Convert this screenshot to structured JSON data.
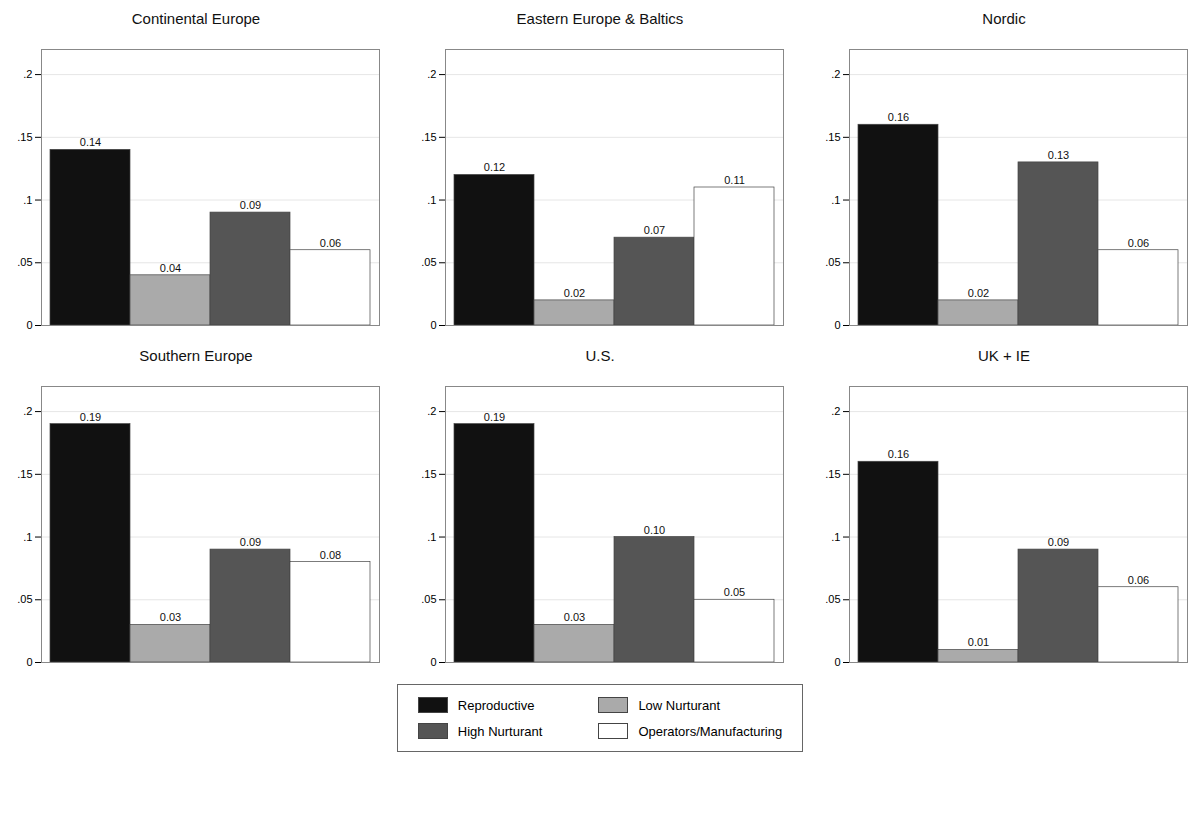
{
  "chart_data": [
    {
      "type": "bar",
      "title": "Continental Europe",
      "categories": [
        "Reproductive",
        "Low Nurturant",
        "High Nurturant",
        "Operators/Manufacturing"
      ],
      "values": [
        0.14,
        0.04,
        0.09,
        0.06
      ],
      "value_labels": [
        "0.14",
        "0.04",
        "0.09",
        "0.06"
      ],
      "colors": [
        "#111111",
        "#aaaaaa",
        "#555555",
        "#ffffff"
      ],
      "ylim": [
        0,
        0.22
      ],
      "yticks": [
        0,
        {
          "value": 0.05,
          "label": ".05"
        },
        {
          "value": 0.1,
          "label": ".1"
        },
        {
          "value": 0.15,
          "label": ".15"
        },
        {
          "value": 0.2,
          "label": ".2"
        }
      ],
      "grid": true,
      "data_labels": true,
      "tick_labels": "y",
      "legend": "bottom"
    },
    {
      "type": "bar",
      "title": "Eastern Europe & Baltics",
      "categories": [
        "Reproductive",
        "Low Nurturant",
        "High Nurturant",
        "Operators/Manufacturing"
      ],
      "values": [
        0.12,
        0.02,
        0.07,
        0.11
      ],
      "value_labels": [
        "0.12",
        "0.02",
        "0.07",
        "0.11"
      ],
      "colors": [
        "#111111",
        "#aaaaaa",
        "#555555",
        "#ffffff"
      ],
      "ylim": [
        0,
        0.22
      ],
      "yticks": [
        0,
        {
          "value": 0.05,
          "label": ".05"
        },
        {
          "value": 0.1,
          "label": ".1"
        },
        {
          "value": 0.15,
          "label": ".15"
        },
        {
          "value": 0.2,
          "label": ".2"
        }
      ],
      "grid": true,
      "data_labels": true,
      "tick_labels": "y",
      "legend": "bottom"
    },
    {
      "type": "bar",
      "title": "Nordic",
      "categories": [
        "Reproductive",
        "Low Nurturant",
        "High Nurturant",
        "Operators/Manufacturing"
      ],
      "values": [
        0.16,
        0.02,
        0.13,
        0.06
      ],
      "value_labels": [
        "0.16",
        "0.02",
        "0.13",
        "0.06"
      ],
      "colors": [
        "#111111",
        "#aaaaaa",
        "#555555",
        "#ffffff"
      ],
      "ylim": [
        0,
        0.22
      ],
      "yticks": [
        0,
        {
          "value": 0.05,
          "label": ".05"
        },
        {
          "value": 0.1,
          "label": ".1"
        },
        {
          "value": 0.15,
          "label": ".15"
        },
        {
          "value": 0.2,
          "label": ".2"
        }
      ],
      "grid": true,
      "data_labels": true,
      "tick_labels": "y",
      "legend": "bottom"
    },
    {
      "type": "bar",
      "title": "Southern Europe",
      "categories": [
        "Reproductive",
        "Low Nurturant",
        "High Nurturant",
        "Operators/Manufacturing"
      ],
      "values": [
        0.19,
        0.03,
        0.09,
        0.08
      ],
      "value_labels": [
        "0.19",
        "0.03",
        "0.09",
        "0.08"
      ],
      "colors": [
        "#111111",
        "#aaaaaa",
        "#555555",
        "#ffffff"
      ],
      "ylim": [
        0,
        0.22
      ],
      "yticks": [
        0,
        {
          "value": 0.05,
          "label": ".05"
        },
        {
          "value": 0.1,
          "label": ".1"
        },
        {
          "value": 0.15,
          "label": ".15"
        },
        {
          "value": 0.2,
          "label": ".2"
        }
      ],
      "grid": true,
      "data_labels": true,
      "tick_labels": "y",
      "legend": "bottom"
    },
    {
      "type": "bar",
      "title": "U.S.",
      "categories": [
        "Reproductive",
        "Low Nurturant",
        "High Nurturant",
        "Operators/Manufacturing"
      ],
      "values": [
        0.19,
        0.03,
        0.1,
        0.05
      ],
      "value_labels": [
        "0.19",
        "0.03",
        "0.10",
        "0.05"
      ],
      "colors": [
        "#111111",
        "#aaaaaa",
        "#555555",
        "#ffffff"
      ],
      "ylim": [
        0,
        0.22
      ],
      "yticks": [
        0,
        {
          "value": 0.05,
          "label": ".05"
        },
        {
          "value": 0.1,
          "label": ".1"
        },
        {
          "value": 0.15,
          "label": ".15"
        },
        {
          "value": 0.2,
          "label": ".2"
        }
      ],
      "grid": true,
      "data_labels": true,
      "tick_labels": "y",
      "legend": "bottom"
    },
    {
      "type": "bar",
      "title": "UK + IE",
      "categories": [
        "Reproductive",
        "Low Nurturant",
        "High Nurturant",
        "Operators/Manufacturing"
      ],
      "values": [
        0.16,
        0.01,
        0.09,
        0.06
      ],
      "value_labels": [
        "0.16",
        "0.01",
        "0.09",
        "0.06"
      ],
      "colors": [
        "#111111",
        "#aaaaaa",
        "#555555",
        "#ffffff"
      ],
      "ylim": [
        0,
        0.22
      ],
      "yticks": [
        0,
        {
          "value": 0.05,
          "label": ".05"
        },
        {
          "value": 0.1,
          "label": ".1"
        },
        {
          "value": 0.15,
          "label": ".15"
        },
        {
          "value": 0.2,
          "label": ".2"
        }
      ],
      "grid": true,
      "data_labels": true,
      "tick_labels": "y",
      "legend": "bottom"
    }
  ]
}
